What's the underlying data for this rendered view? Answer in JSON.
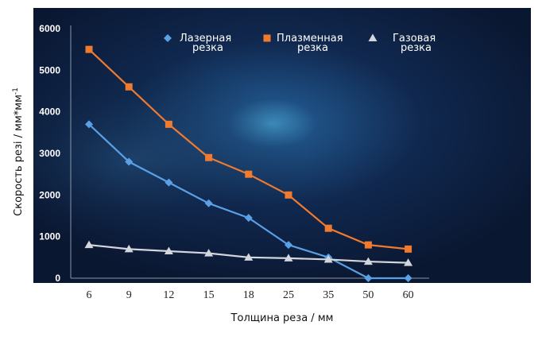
{
  "chart_data": {
    "type": "line",
    "categories": [
      "6",
      "9",
      "12",
      "15",
      "18",
      "25",
      "35",
      "50",
      "60"
    ],
    "series": [
      {
        "name_line1": "Лазерная",
        "name_line2": "резка",
        "color": "#5aa0e6",
        "marker": "diamond",
        "values": [
          3700,
          2800,
          2300,
          1800,
          1450,
          800,
          500,
          0,
          0
        ]
      },
      {
        "name_line1": "Плазменная",
        "name_line2": "резка",
        "color": "#f07a2e",
        "marker": "square",
        "values": [
          5500,
          4600,
          3700,
          2900,
          2500,
          2000,
          1200,
          800,
          700
        ]
      },
      {
        "name_line1": "Газовая",
        "name_line2": "резка",
        "color": "#d3d6dc",
        "marker": "triangle",
        "values": [
          800,
          700,
          650,
          600,
          500,
          480,
          450,
          400,
          370
        ]
      }
    ],
    "ylim": [
      0,
      6000
    ],
    "yticks": [
      "0",
      "1000",
      "2000",
      "3000",
      "4000",
      "5000",
      "6000"
    ],
    "xlabel": "Толщина реза / мм",
    "ylabel_main": "Скорость резi / мм*мм",
    "ylabel_sup": "-1",
    "grid": false,
    "legend_position": "top"
  }
}
